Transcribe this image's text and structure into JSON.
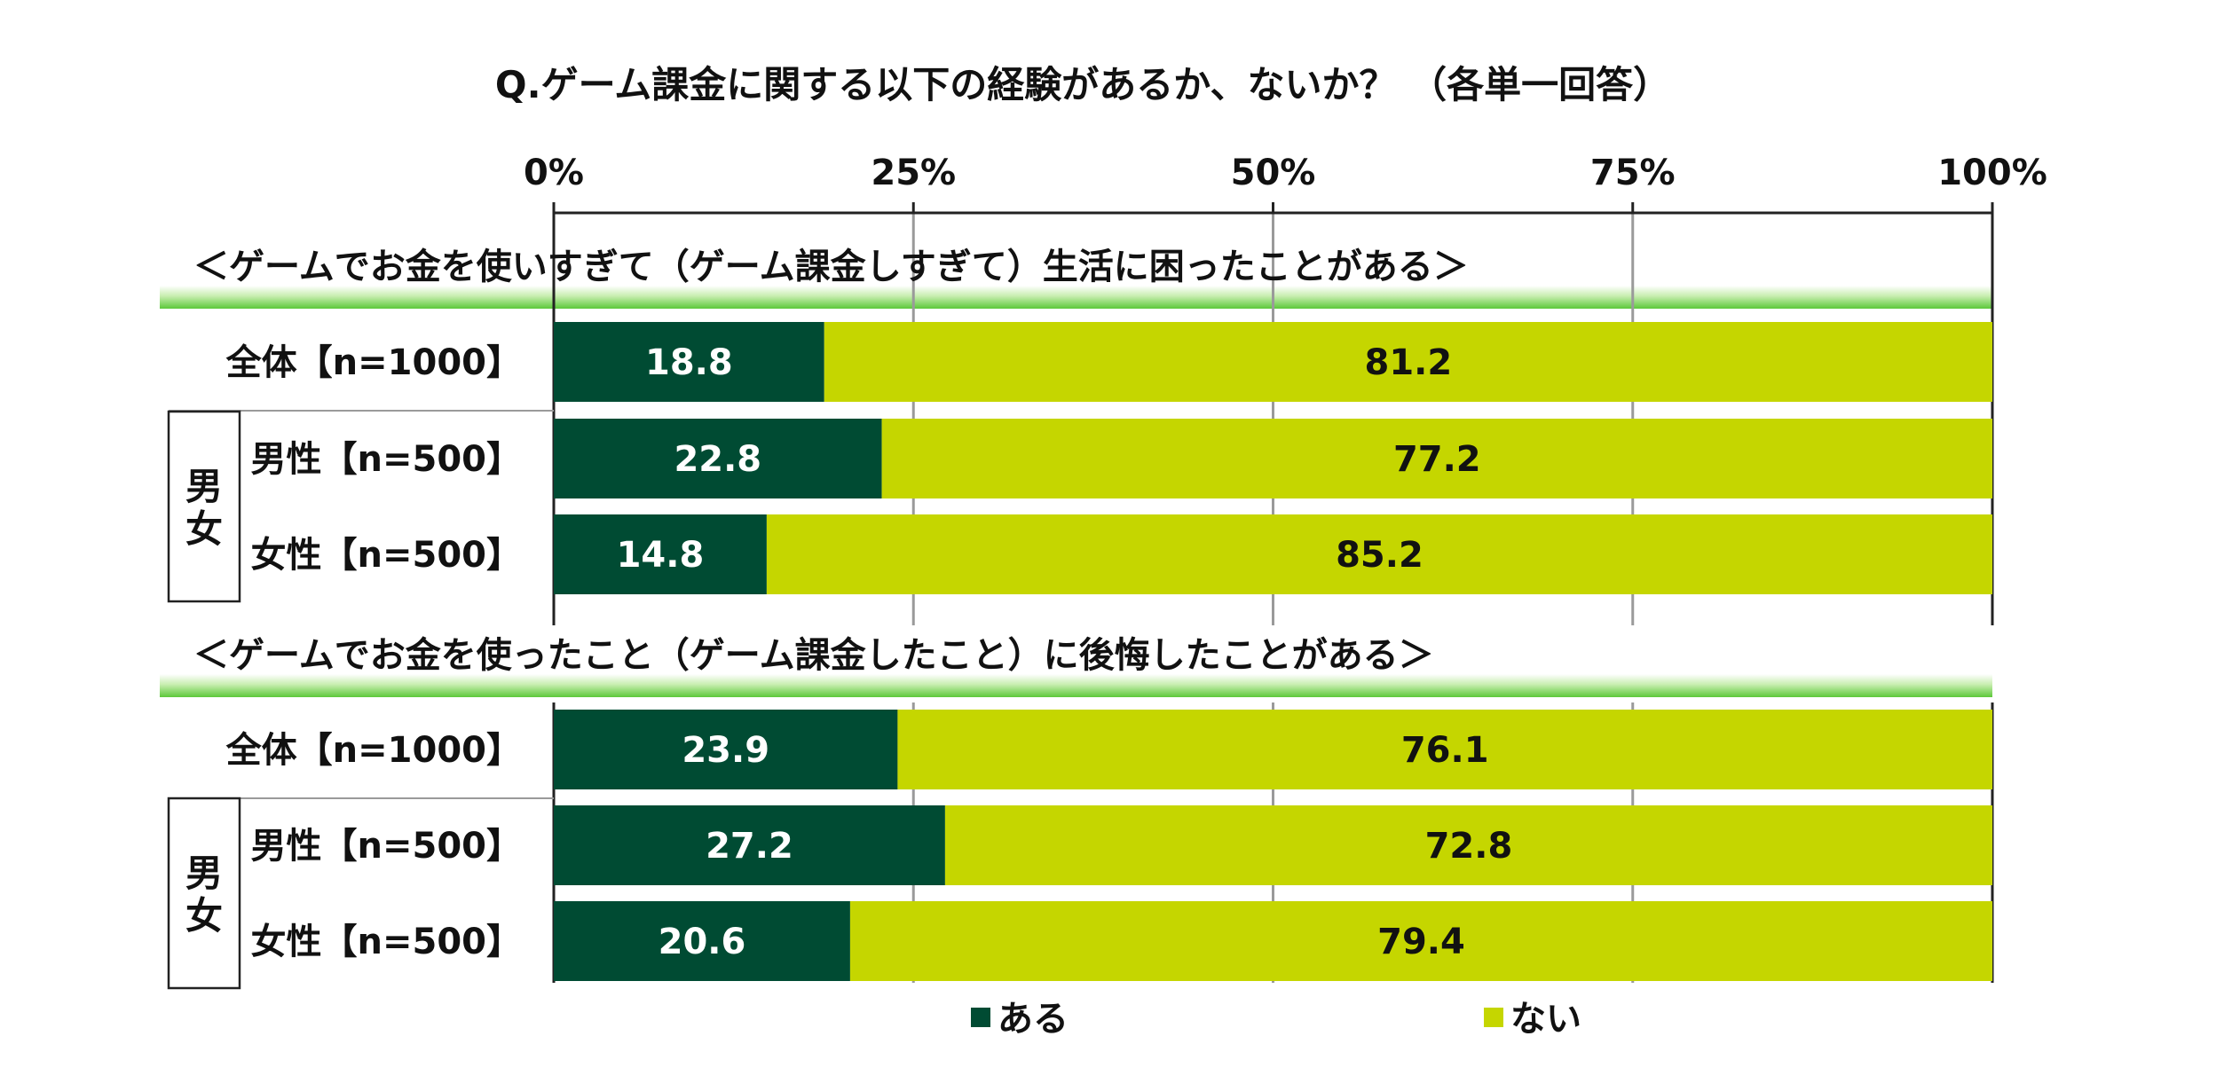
{
  "chart_data": {
    "type": "bar",
    "orientation": "horizontal-stacked-100",
    "title": "Q.ゲーム課金に関する以下の経験があるか、ないか？ （各単一回答）",
    "xlim": [
      0,
      100
    ],
    "ticks": [
      {
        "value": 0,
        "label": "0%"
      },
      {
        "value": 25,
        "label": "25%"
      },
      {
        "value": 50,
        "label": "50%"
      },
      {
        "value": 75,
        "label": "75%"
      },
      {
        "value": 100,
        "label": "100%"
      }
    ],
    "legend": {
      "position": "bottom",
      "items": [
        {
          "key": "aru",
          "label": "ある",
          "color": "#004b33"
        },
        {
          "key": "nai",
          "label": "ない",
          "color": "#c5d600"
        }
      ]
    },
    "series_colors": {
      "aru": "#004b33",
      "nai": "#c5d600"
    },
    "group_label": "男女",
    "sections": [
      {
        "title": "＜ゲームでお金を使いすぎて（ゲーム課金しすぎて）生活に困ったことがある＞",
        "rows": [
          {
            "label": "全体【n=1000】",
            "aru": 18.8,
            "nai": 81.2,
            "grouped": false
          },
          {
            "label": "男性【n=500】",
            "aru": 22.8,
            "nai": 77.2,
            "grouped": true
          },
          {
            "label": "女性【n=500】",
            "aru": 14.8,
            "nai": 85.2,
            "grouped": true
          }
        ]
      },
      {
        "title": "＜ゲームでお金を使ったこと（ゲーム課金したこと）に後悔したことがある＞",
        "rows": [
          {
            "label": "全体【n=1000】",
            "aru": 23.9,
            "nai": 76.1,
            "grouped": false
          },
          {
            "label": "男性【n=500】",
            "aru": 27.2,
            "nai": 72.8,
            "grouped": true
          },
          {
            "label": "女性【n=500】",
            "aru": 20.6,
            "nai": 79.4,
            "grouped": true
          }
        ]
      }
    ]
  }
}
